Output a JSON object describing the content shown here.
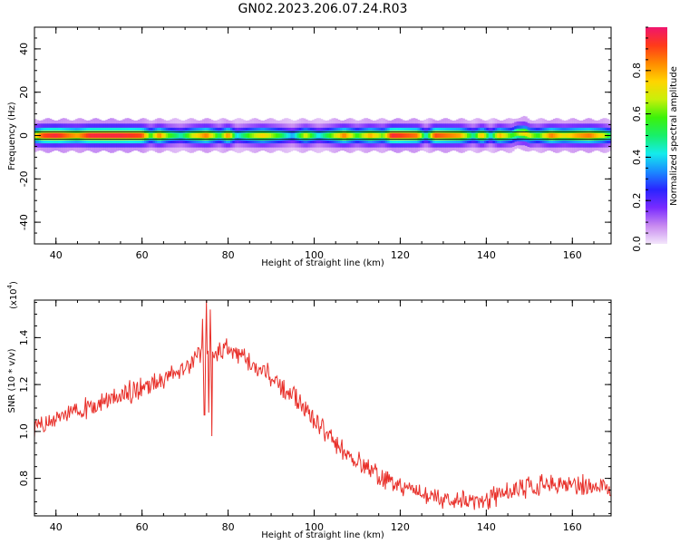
{
  "title": "GN02.2023.206.07.24.R03",
  "chart_data": [
    {
      "type": "heatmap",
      "subtype": "spectrogram",
      "xlabel": "Height of straight line (km)",
      "ylabel": "Frequency (Hz)",
      "xlim": [
        35,
        169
      ],
      "ylim": [
        -50,
        50
      ],
      "x_ticks": [
        40,
        60,
        80,
        100,
        120,
        140,
        160
      ],
      "x_tick_labels": [
        "40",
        "60",
        "80",
        "100",
        "120",
        "140",
        "160"
      ],
      "y_ticks": [
        -40,
        -20,
        0,
        20,
        40
      ],
      "y_tick_labels": [
        "-40",
        "-20",
        "0",
        "20",
        "40"
      ],
      "center_frequency_hz": [
        [
          35,
          0
        ],
        [
          146,
          0
        ],
        [
          147,
          1
        ],
        [
          149,
          1
        ],
        [
          150,
          0
        ],
        [
          169,
          0
        ]
      ],
      "intensity_profile": [
        [
          35,
          0.7
        ],
        [
          37,
          0.9
        ],
        [
          40,
          0.95
        ],
        [
          43,
          0.85
        ],
        [
          45,
          0.8
        ],
        [
          48,
          0.95
        ],
        [
          55,
          0.95
        ],
        [
          60,
          0.9
        ],
        [
          62,
          0.55
        ],
        [
          64,
          0.85
        ],
        [
          66,
          0.6
        ],
        [
          69,
          0.45
        ],
        [
          72,
          0.7
        ],
        [
          75,
          0.85
        ],
        [
          78,
          0.5
        ],
        [
          80,
          0.85
        ],
        [
          82,
          0.4
        ],
        [
          85,
          0.6
        ],
        [
          88,
          0.75
        ],
        [
          92,
          0.55
        ],
        [
          95,
          0.35
        ],
        [
          98,
          0.7
        ],
        [
          101,
          0.4
        ],
        [
          104,
          0.6
        ],
        [
          107,
          0.85
        ],
        [
          110,
          0.55
        ],
        [
          113,
          0.8
        ],
        [
          116,
          0.6
        ],
        [
          118,
          0.95
        ],
        [
          124,
          0.85
        ],
        [
          126,
          0.4
        ],
        [
          128,
          0.9
        ],
        [
          134,
          0.8
        ],
        [
          137,
          0.45
        ],
        [
          139,
          0.8
        ],
        [
          141,
          0.4
        ],
        [
          143,
          0.8
        ],
        [
          146,
          0.55
        ],
        [
          149,
          0.75
        ],
        [
          152,
          0.55
        ],
        [
          155,
          0.85
        ],
        [
          158,
          0.7
        ],
        [
          161,
          0.8
        ],
        [
          164,
          0.85
        ],
        [
          167,
          0.7
        ],
        [
          169,
          0.5
        ]
      ]
    },
    {
      "type": "line",
      "xlabel": "Height of straight line (km)",
      "ylabel": "SNR (10 * v/v)",
      "scale_label": "(x10",
      "scale_exponent": "4",
      "scale_close": ")",
      "xlim": [
        35,
        169
      ],
      "ylim": [
        0.64,
        1.56
      ],
      "x_ticks": [
        40,
        60,
        80,
        100,
        120,
        140,
        160
      ],
      "x_tick_labels": [
        "40",
        "60",
        "80",
        "100",
        "120",
        "140",
        "160"
      ],
      "y_ticks": [
        0.8,
        1.0,
        1.2,
        1.4
      ],
      "y_tick_labels": [
        "0.8",
        "1.0",
        "1.2",
        "1.4"
      ],
      "color": "#e8302a",
      "trend": [
        [
          35,
          1.0
        ],
        [
          40,
          1.05
        ],
        [
          45,
          1.09
        ],
        [
          50,
          1.12
        ],
        [
          55,
          1.15
        ],
        [
          60,
          1.19
        ],
        [
          65,
          1.22
        ],
        [
          70,
          1.28
        ],
        [
          74,
          1.33
        ],
        [
          75,
          1.32
        ],
        [
          78,
          1.34
        ],
        [
          80,
          1.35
        ],
        [
          85,
          1.3
        ],
        [
          90,
          1.23
        ],
        [
          95,
          1.15
        ],
        [
          100,
          1.05
        ],
        [
          105,
          0.95
        ],
        [
          110,
          0.87
        ],
        [
          115,
          0.81
        ],
        [
          120,
          0.76
        ],
        [
          125,
          0.73
        ],
        [
          130,
          0.71
        ],
        [
          135,
          0.7
        ],
        [
          140,
          0.71
        ],
        [
          145,
          0.74
        ],
        [
          150,
          0.76
        ],
        [
          155,
          0.77
        ],
        [
          160,
          0.77
        ],
        [
          165,
          0.77
        ],
        [
          169,
          0.76
        ]
      ],
      "noise_amplitude": 0.035,
      "spikes": [
        [
          74.0,
          1.48
        ],
        [
          74.5,
          1.07
        ],
        [
          75.0,
          1.56
        ],
        [
          75.5,
          1.08
        ],
        [
          75.8,
          1.52
        ],
        [
          76.2,
          0.98
        ]
      ]
    }
  ],
  "colorbar": {
    "label": "Normalized spectral amplitude",
    "range": [
      0,
      1
    ],
    "ticks": [
      0.0,
      0.2,
      0.4,
      0.6,
      0.8
    ],
    "tick_labels": [
      "0.0",
      "0.2",
      "0.4",
      "0.6",
      "0.8"
    ],
    "stops": [
      "#f3e6fb",
      "#c88af0",
      "#7a2bff",
      "#2a24ff",
      "#1a8bff",
      "#14ecec",
      "#18ef6a",
      "#3cf20a",
      "#c8f00a",
      "#ffd400",
      "#ff8a00",
      "#ff3a1a",
      "#f0156e"
    ]
  }
}
